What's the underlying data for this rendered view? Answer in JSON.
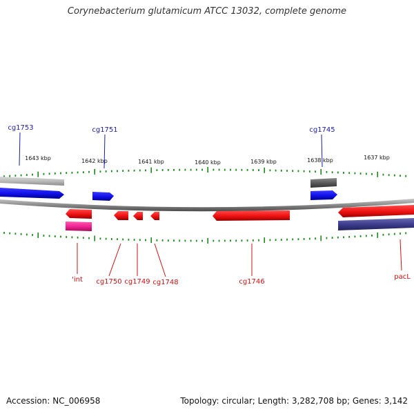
{
  "header": {
    "title": "Corynebacterium glutamicum ATCC 13032, complete genome"
  },
  "footer": {
    "accession": "Accession: NC_006958",
    "stats": "Topology: circular; Length: 3,282,708 bp; Genes: 3,142"
  },
  "colors": {
    "forward_gene": "#1a1aee",
    "reverse_gene": "#ee1111",
    "forward_label": "#1a1aaa",
    "reverse_label": "#cc1111",
    "tick": "#1a8a1a",
    "ruler_label": "#111111",
    "backbone": "#8a8a8a"
  },
  "ruler": {
    "labels": [
      "1643 kbp",
      "1642 kbp",
      "1641 kbp",
      "1640 kbp",
      "1639 kbp",
      "1638 kbp",
      "1637 kbp"
    ]
  },
  "genes": {
    "forward_labels": [
      "cg1753",
      "cg1751",
      "cg1745"
    ],
    "reverse_labels": [
      "'int",
      "cg1750",
      "cg1749",
      "cg1748",
      "cg1746",
      "pacL"
    ]
  }
}
